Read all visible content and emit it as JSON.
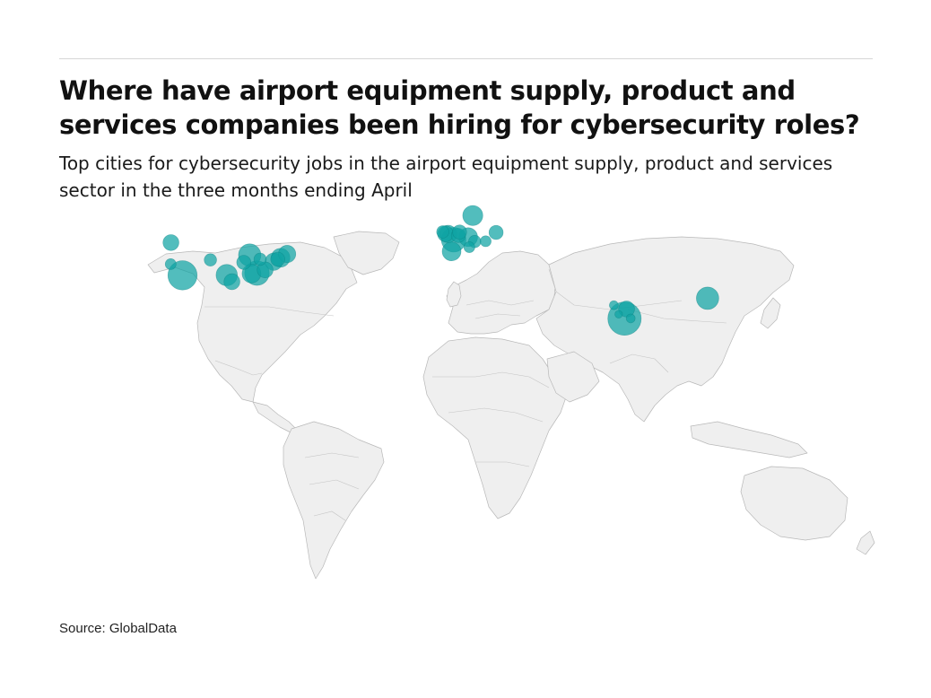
{
  "header": {
    "title": "Where have airport equipment supply, product and services companies been hiring for cybersecurity roles?",
    "subtitle": "Top cities for cybersecurity jobs in the airport equipment supply, product and services sector in the three months ending April"
  },
  "footer": {
    "source": "Source: GlobalData"
  },
  "colors": {
    "bubble": "#0fa3a3",
    "bubble_stroke": "#0a7f7f",
    "land": "#efefef",
    "borders": "#b8b8b8"
  },
  "map_data": {
    "type": "bubble-map",
    "projection": "equirectangular",
    "bubbles": [
      {
        "lon": -122.3,
        "lat": 47.6,
        "value": 2.5
      },
      {
        "lon": -122.4,
        "lat": 37.8,
        "value": 1.2
      },
      {
        "lon": -117.2,
        "lat": 32.7,
        "value": 8.5
      },
      {
        "lon": -104.9,
        "lat": 39.7,
        "value": 1.5
      },
      {
        "lon": -97.7,
        "lat": 32.8,
        "value": 4.5
      },
      {
        "lon": -95.4,
        "lat": 29.8,
        "value": 2.5
      },
      {
        "lon": -90.2,
        "lat": 38.6,
        "value": 2.0
      },
      {
        "lon": -87.6,
        "lat": 41.9,
        "value": 5.0
      },
      {
        "lon": -86.8,
        "lat": 33.5,
        "value": 3.5
      },
      {
        "lon": -84.4,
        "lat": 33.7,
        "value": 6.0
      },
      {
        "lon": -83.0,
        "lat": 40.0,
        "value": 1.5
      },
      {
        "lon": -80.8,
        "lat": 35.2,
        "value": 2.5
      },
      {
        "lon": -77.0,
        "lat": 38.9,
        "value": 3.0
      },
      {
        "lon": -75.2,
        "lat": 40.0,
        "value": 2.0
      },
      {
        "lon": -74.0,
        "lat": 40.7,
        "value": 3.5
      },
      {
        "lon": -71.1,
        "lat": 42.4,
        "value": 3.0
      },
      {
        "lon": -2.5,
        "lat": 52.5,
        "value": 1.5
      },
      {
        "lon": -1.3,
        "lat": 51.6,
        "value": 2.5
      },
      {
        "lon": -0.1,
        "lat": 51.5,
        "value": 3.0
      },
      {
        "lon": 2.3,
        "lat": 48.9,
        "value": 6.0
      },
      {
        "lon": 4.4,
        "lat": 50.8,
        "value": 2.0
      },
      {
        "lon": 1.4,
        "lat": 43.6,
        "value": 3.5
      },
      {
        "lon": 4.9,
        "lat": 52.4,
        "value": 2.0
      },
      {
        "lon": 8.7,
        "lat": 50.1,
        "value": 3.5
      },
      {
        "lon": 11.6,
        "lat": 48.1,
        "value": 1.5
      },
      {
        "lon": 9.2,
        "lat": 45.5,
        "value": 1.2
      },
      {
        "lon": 16.4,
        "lat": 48.2,
        "value": 1.2
      },
      {
        "lon": 10.7,
        "lat": 59.9,
        "value": 4.0
      },
      {
        "lon": 21.0,
        "lat": 52.2,
        "value": 2.0
      },
      {
        "lon": 72.9,
        "lat": 19.1,
        "value": 0.8
      },
      {
        "lon": 77.6,
        "lat": 13.0,
        "value": 11.0
      },
      {
        "lon": 78.5,
        "lat": 17.4,
        "value": 2.5
      },
      {
        "lon": 80.3,
        "lat": 13.1,
        "value": 0.8
      },
      {
        "lon": 75.0,
        "lat": 15.0,
        "value": 0.6
      },
      {
        "lon": 114.2,
        "lat": 22.3,
        "value": 5.0
      }
    ]
  }
}
